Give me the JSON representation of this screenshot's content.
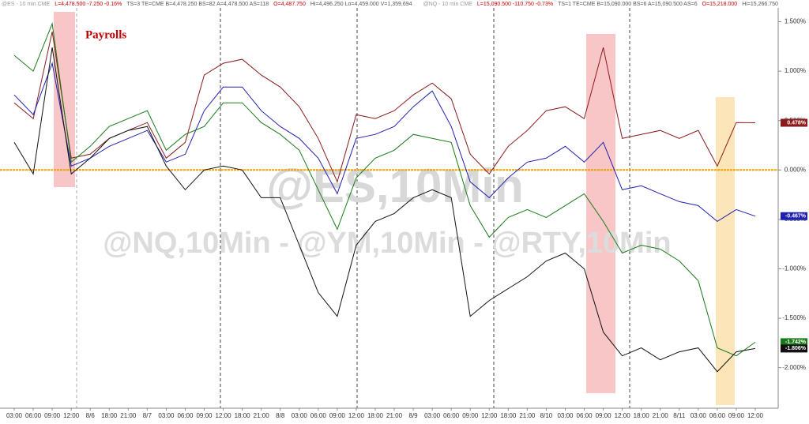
{
  "chart_data": {
    "type": "line",
    "header": [
      {
        "text": "@ES - 10 min  CME",
        "color": "#999999"
      },
      {
        "text": "L=4,478.500  -7.250  -0.16%",
        "color": "#cc0000"
      },
      {
        "text": "TS=3  TE=CME  B=4,478.250  BS=82  A=4,478.500  AS=118",
        "color": "#555555"
      },
      {
        "text": "O=4,487.750",
        "color": "#cc0000"
      },
      {
        "text": "Hi=4,496.250  Lo=4,459.000  V=1,359,694",
        "color": "#555555"
      },
      {
        "text": "@NQ - 10 min  CME",
        "color": "#999999"
      },
      {
        "text": "L=15,090.500  -110.750  -0.73%",
        "color": "#cc0000"
      },
      {
        "text": "TS=1  TE=CME  B=15,090.000  BS=6  A=15,090.500  AS=6",
        "color": "#555555"
      },
      {
        "text": "O=15,218.000",
        "color": "#cc0000"
      },
      {
        "text": "Hi=15,266.750",
        "color": "#555555"
      }
    ],
    "watermark": "@ES,10Min",
    "watermark2": "@NQ,10Min - @YM,10Min - @RTY,10Min",
    "annotation": "Payrolls",
    "categories": [
      "03:00",
      "06:00",
      "09:00",
      "12:00",
      "8/6",
      "18:00",
      "21:00",
      "8/7",
      "03:00",
      "06:00",
      "09:00",
      "12:00",
      "18:00",
      "21:00",
      "8/8",
      "03:00",
      "06:00",
      "09:00",
      "12:00",
      "18:00",
      "21:00",
      "8/9",
      "03:00",
      "06:00",
      "09:00",
      "12:00",
      "18:00",
      "21:00",
      "8/10",
      "03:00",
      "06:00",
      "09:00",
      "12:00",
      "18:00",
      "21:00",
      "8/11",
      "03:00",
      "06:00",
      "09:00",
      "12:00"
    ],
    "ylim": [
      -2.41,
      1.72
    ],
    "yticks": [
      {
        "value": 1.5,
        "label": "1.500%"
      },
      {
        "value": 1,
        "label": "1.000%"
      },
      {
        "value": 0.5,
        "label": "0.500%"
      },
      {
        "value": 0,
        "label": "0.000%"
      },
      {
        "value": -0.5,
        "label": "-0.500%"
      },
      {
        "value": -1,
        "label": "-1.000%"
      },
      {
        "value": -1.5,
        "label": "-1.500%"
      },
      {
        "value": -2,
        "label": "-2.000%"
      }
    ],
    "zero_line_color": "#f0a000",
    "series": [
      {
        "color": "#8b1a1a",
        "end_label": "0.478%",
        "values": [
          0.68,
          0.52,
          1.4,
          0.12,
          0.16,
          0.32,
          0.4,
          0.48,
          0.12,
          0.28,
          0.96,
          1.08,
          1.12,
          0.96,
          0.84,
          0.64,
          0.32,
          -0.12,
          0.56,
          0.52,
          0.6,
          0.76,
          0.88,
          0.72,
          0.16,
          -0.04,
          0.24,
          0.4,
          0.6,
          0.64,
          0.52,
          1.24,
          0.32,
          0.36,
          0.4,
          0.32,
          0.4,
          0.04,
          0.48,
          0.478
        ]
      },
      {
        "color": "#2020b0",
        "end_label": "-0.467%",
        "values": [
          0.76,
          0.56,
          1.08,
          0.04,
          0.12,
          0.24,
          0.32,
          0.4,
          0.08,
          0.16,
          0.6,
          0.84,
          0.84,
          0.6,
          0.44,
          0.32,
          0.12,
          -0.24,
          0.32,
          0.36,
          0.44,
          0.64,
          0.8,
          0.44,
          -0.12,
          -0.28,
          -0.08,
          0.08,
          0.12,
          0.24,
          0.08,
          0.28,
          -0.2,
          -0.16,
          -0.24,
          -0.32,
          -0.36,
          -0.52,
          -0.4,
          -0.467
        ]
      },
      {
        "color": "#1a7a1a",
        "end_label": "-1.742%",
        "values": [
          1.16,
          1.0,
          1.48,
          0.08,
          0.24,
          0.44,
          0.52,
          0.6,
          0.2,
          0.36,
          0.44,
          0.68,
          0.68,
          0.48,
          0.36,
          0.2,
          -0.2,
          -0.6,
          -0.08,
          0.12,
          0.2,
          0.36,
          0.32,
          0.28,
          -0.36,
          -0.68,
          -0.48,
          -0.4,
          -0.48,
          -0.36,
          -0.24,
          -0.52,
          -0.84,
          -0.76,
          -0.8,
          -0.92,
          -1.12,
          -1.8,
          -1.88,
          -1.742
        ]
      },
      {
        "color": "#111111",
        "end_label": "-1.806%",
        "values": [
          0.28,
          -0.04,
          1.24,
          -0.04,
          0.12,
          0.32,
          0.4,
          0.44,
          0.04,
          -0.2,
          0,
          0.04,
          0,
          -0.28,
          -0.28,
          -0.76,
          -1.24,
          -1.48,
          -0.76,
          -0.52,
          -0.44,
          -0.28,
          -0.2,
          -0.28,
          -1.48,
          -1.32,
          -1.2,
          -1.08,
          -0.92,
          -0.84,
          -1.0,
          -1.64,
          -1.88,
          -1.8,
          -1.92,
          -1.84,
          -1.8,
          -2.04,
          -1.84,
          -1.806
        ]
      }
    ]
  }
}
